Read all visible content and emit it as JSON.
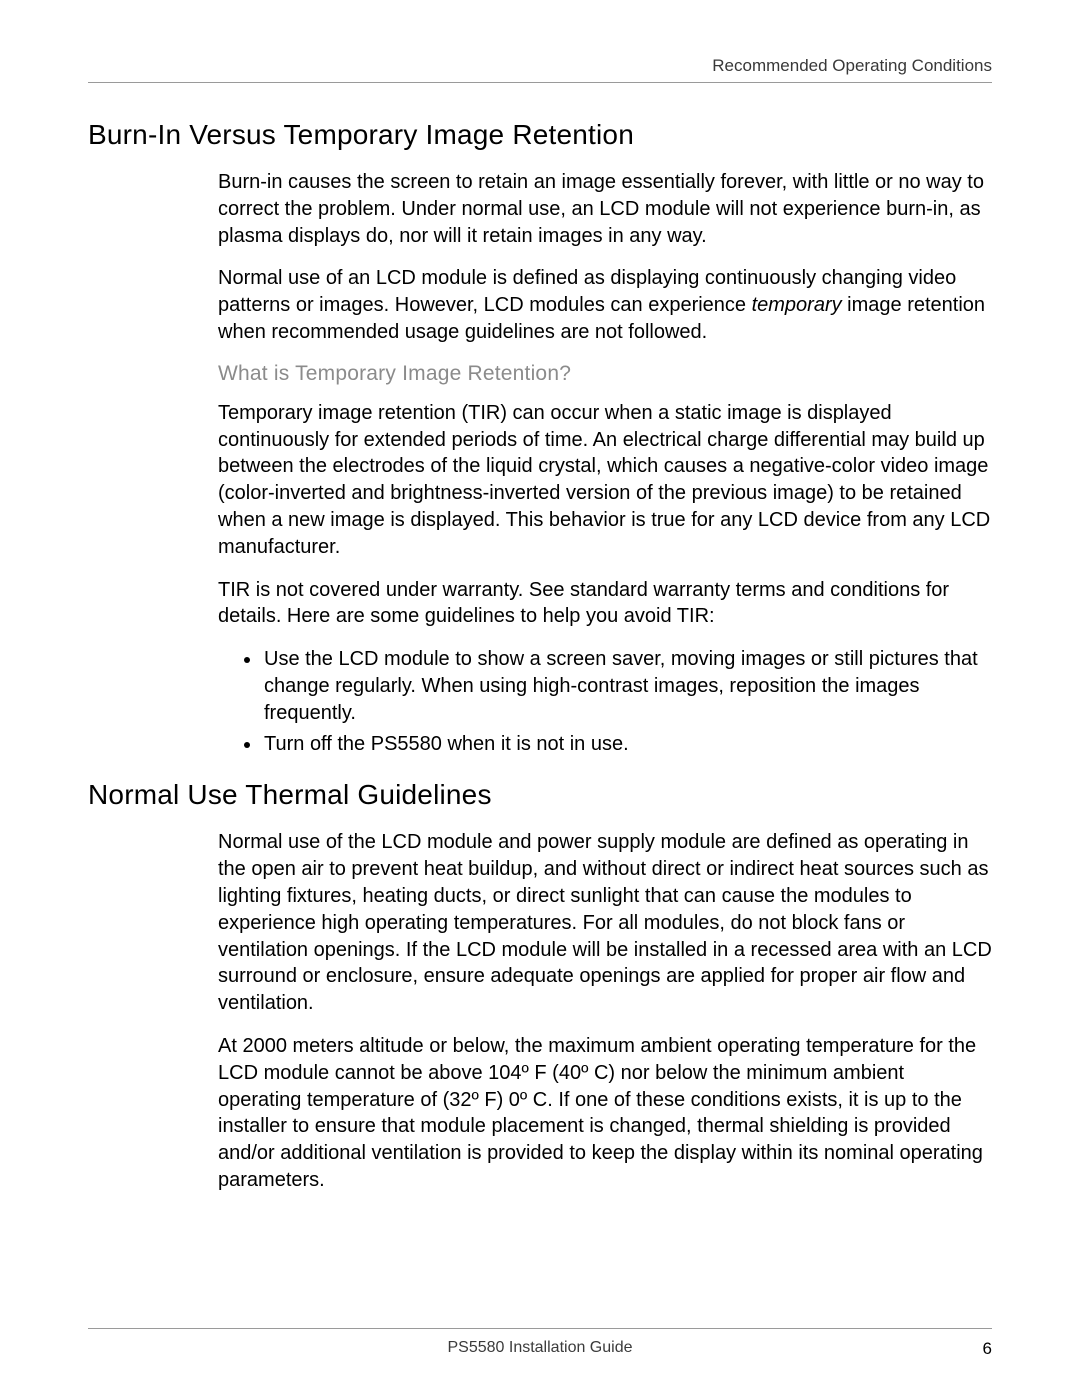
{
  "header": {
    "section": "Recommended Operating Conditions"
  },
  "sections": {
    "burnIn": {
      "heading": "Burn-In Versus Temporary Image Retention",
      "p1": "Burn-in causes the screen to retain an image essentially forever, with little or no way to correct the problem. Under normal use, an LCD module will not experience burn-in, as plasma displays do, nor will it retain images in any way.",
      "p2a": "Normal use of an LCD module is defined as displaying continuously changing video patterns or images. However, LCD modules can experience ",
      "p2_em": "temporary",
      "p2b": " image retention when recommended usage guidelines are not followed.",
      "subheading": "What is Temporary Image Retention?",
      "p3": "Temporary image retention (TIR) can occur when a static image is displayed continuously for extended periods of time. An electrical charge differential may build up between the electrodes of the liquid crystal, which causes a negative-color video image (color-inverted and brightness-inverted version of the previous image) to be retained when a new image is displayed. This behavior is true for any LCD device from any LCD manufacturer.",
      "p4": "TIR is not covered under warranty. See standard warranty terms and conditions for details. Here are some guidelines to help you avoid TIR:",
      "bullets": [
        "Use the LCD module to show a screen saver, moving images or still pictures that change regularly. When using high-contrast images, reposition the images frequently.",
        "Turn off the PS5580 when it is not in use."
      ]
    },
    "thermal": {
      "heading": "Normal Use Thermal Guidelines",
      "p1": "Normal use of the LCD module and power supply module are defined as operating in the open air to prevent heat buildup, and without direct or indirect heat sources such as lighting fixtures, heating ducts, or direct sunlight that can cause the modules to experience high operating temperatures. For all modules, do not block fans or ventilation openings. If the LCD module will be installed in a recessed area with an LCD surround or enclosure, ensure adequate openings are applied for proper air flow and ventilation.",
      "p2": "At 2000 meters altitude or below, the maximum ambient operating temperature for the LCD module cannot be above 104º F (40º C) nor below the minimum ambient operating temperature of (32º F) 0º C. If one of these conditions exists, it is up to the installer to ensure that module placement is changed, thermal shielding is provided and/or additional ventilation is provided to keep the display within its nominal operating parameters."
    }
  },
  "footer": {
    "title": "PS5580 Installation Guide",
    "page": "6"
  }
}
